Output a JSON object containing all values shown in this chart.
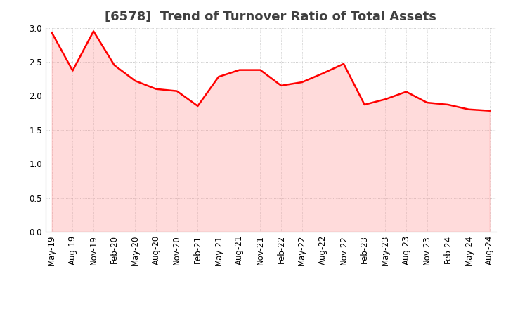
{
  "title": "[6578]  Trend of Turnover Ratio of Total Assets",
  "x_labels": [
    "May-19",
    "Aug-19",
    "Nov-19",
    "Feb-20",
    "May-20",
    "Aug-20",
    "Nov-20",
    "Feb-21",
    "May-21",
    "Aug-21",
    "Nov-21",
    "Feb-22",
    "May-22",
    "Aug-22",
    "Nov-22",
    "Feb-23",
    "May-23",
    "Aug-23",
    "Nov-23",
    "Feb-24",
    "May-24",
    "Aug-24"
  ],
  "values": [
    2.93,
    2.37,
    2.95,
    2.45,
    2.22,
    2.1,
    2.07,
    1.85,
    2.28,
    2.38,
    2.38,
    2.15,
    2.2,
    2.33,
    2.47,
    1.87,
    1.95,
    2.06,
    1.9,
    1.87,
    1.8,
    1.78
  ],
  "line_color": "#FF0000",
  "fill_color": "#FF9999",
  "line_width": 1.8,
  "ylim": [
    0.0,
    3.0
  ],
  "yticks": [
    0.0,
    0.5,
    1.0,
    1.5,
    2.0,
    2.5,
    3.0
  ],
  "background_color": "#FFFFFF",
  "grid_color": "#BBBBBB",
  "title_fontsize": 13,
  "tick_fontsize": 8.5,
  "title_color": "#404040"
}
